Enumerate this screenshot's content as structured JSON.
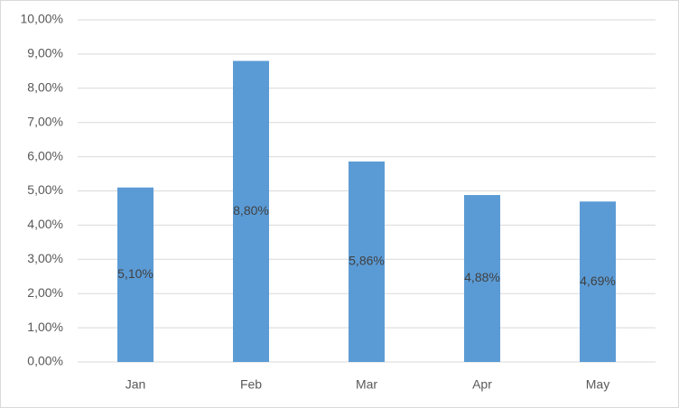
{
  "chart_data": {
    "type": "bar",
    "categories": [
      "Jan",
      "Feb",
      "Mar",
      "Apr",
      "May"
    ],
    "values": [
      5.1,
      8.8,
      5.86,
      4.88,
      4.69
    ],
    "value_labels": [
      "5,10%",
      "8,80%",
      "5,86%",
      "4,88%",
      "4,69%"
    ],
    "color": "#5b9bd5",
    "ylim": [
      0,
      10
    ],
    "yticks": [
      {
        "value": 0,
        "label": "0,00%"
      },
      {
        "value": 1,
        "label": "1,00%"
      },
      {
        "value": 2,
        "label": "2,00%"
      },
      {
        "value": 3,
        "label": "3,00%"
      },
      {
        "value": 4,
        "label": "4,00%"
      },
      {
        "value": 5,
        "label": "5,00%"
      },
      {
        "value": 6,
        "label": "6,00%"
      },
      {
        "value": 7,
        "label": "7,00%"
      },
      {
        "value": 8,
        "label": "8,00%"
      },
      {
        "value": 9,
        "label": "9,00%"
      },
      {
        "value": 10,
        "label": "10,00%"
      }
    ],
    "grid": true
  }
}
